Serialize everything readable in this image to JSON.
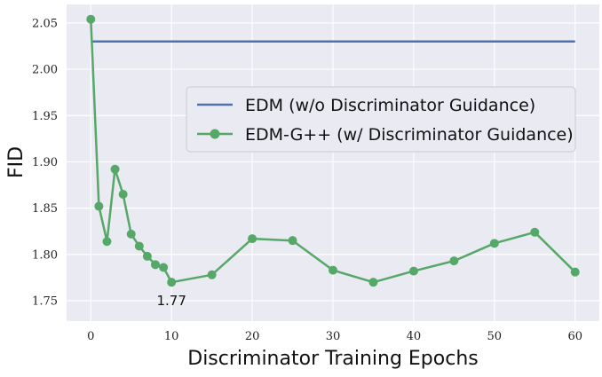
{
  "chart_data": {
    "type": "line",
    "xlabel": "Discriminator Training Epochs",
    "ylabel": "FID",
    "xlim": [
      -3,
      63
    ],
    "ylim": [
      1.728,
      2.07
    ],
    "xticks": [
      0,
      10,
      20,
      30,
      40,
      50,
      60
    ],
    "yticks": [
      1.75,
      1.8,
      1.85,
      1.9,
      1.95,
      2.0,
      2.05
    ],
    "grid": true,
    "legend_position": "center-right",
    "series": [
      {
        "name": "EDM (w/o Discriminator Guidance)",
        "color": "#4c72b0",
        "marker": "none",
        "x": [
          0,
          60
        ],
        "y": [
          2.03,
          2.03
        ]
      },
      {
        "name": "EDM-G++ (w/ Discriminator Guidance)",
        "color": "#55a868",
        "marker": "circle",
        "x": [
          0,
          1,
          2,
          3,
          4,
          5,
          6,
          7,
          8,
          9,
          10,
          15,
          20,
          25,
          30,
          35,
          40,
          45,
          50,
          55,
          60
        ],
        "y": [
          2.054,
          1.852,
          1.814,
          1.892,
          1.865,
          1.822,
          1.809,
          1.798,
          1.789,
          1.786,
          1.77,
          1.778,
          1.817,
          1.815,
          1.783,
          1.77,
          1.782,
          1.793,
          1.812,
          1.824,
          1.781
        ]
      }
    ],
    "annotations": [
      {
        "text": "1.77",
        "x": 10,
        "y": 1.77
      }
    ]
  }
}
